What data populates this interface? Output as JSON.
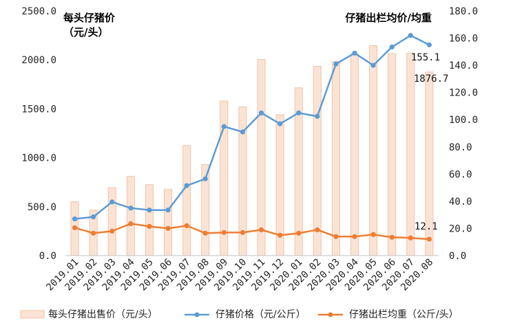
{
  "chart_data": {
    "type": "bar+line",
    "categories": [
      "2019.01",
      "2019.02",
      "2019.03",
      "2019.04",
      "2019.05",
      "2019.06",
      "2019.07",
      "2019.08",
      "2019.09",
      "2019.10",
      "2019.11",
      "2019.12",
      "2020.01",
      "2020.02",
      "2020.03",
      "2020.04",
      "2020.05",
      "2020.06",
      "2020.07",
      "2020.08"
    ],
    "left_axis": {
      "label_line1": "每头仔猪价",
      "label_line2": "（元/头）",
      "ylim": [
        0,
        2500
      ],
      "ticks": [
        "0.0",
        "500.0",
        "1000.0",
        "1500.0",
        "2000.0",
        "2500.0"
      ]
    },
    "right_axis": {
      "label": "仔猪出栏均价/均重",
      "ylim": [
        0,
        180
      ],
      "ticks": [
        "0.0",
        "20.0",
        "40.0",
        "60.0",
        "80.0",
        "100.0",
        "120.0",
        "140.0",
        "160.0",
        "180.0"
      ]
    },
    "series": [
      {
        "name": "每头仔猪出售价（元/头）",
        "type": "bar",
        "axis": "left",
        "color": "#fbe3d4",
        "stroke": "#f0c3a8",
        "values": [
          550,
          465,
          695,
          810,
          725,
          675,
          1125,
          930,
          1580,
          1520,
          2005,
          1440,
          1715,
          1935,
          1985,
          2060,
          2145,
          2065,
          2070,
          1876.7
        ]
      },
      {
        "name": "仔猪价格（元/公斤）",
        "type": "line",
        "axis": "right",
        "color": "#5b9bd5",
        "values": [
          27,
          28.5,
          39.5,
          35,
          33.5,
          33.5,
          51.5,
          56.5,
          95,
          91,
          105,
          97,
          105,
          102.5,
          141,
          149,
          140,
          153.5,
          162,
          155.1
        ]
      },
      {
        "name": "仔猪出栏均重（公斤/头）",
        "type": "line",
        "axis": "right",
        "color": "#ed7d31",
        "values": [
          20.5,
          16.5,
          18,
          23.5,
          21.5,
          20,
          22,
          16.5,
          17,
          17,
          19,
          15,
          16.5,
          19,
          14,
          14,
          15.5,
          13.5,
          13,
          12.1
        ]
      }
    ],
    "annotations": [
      "155.1",
      "1876.7",
      "12.1"
    ]
  }
}
